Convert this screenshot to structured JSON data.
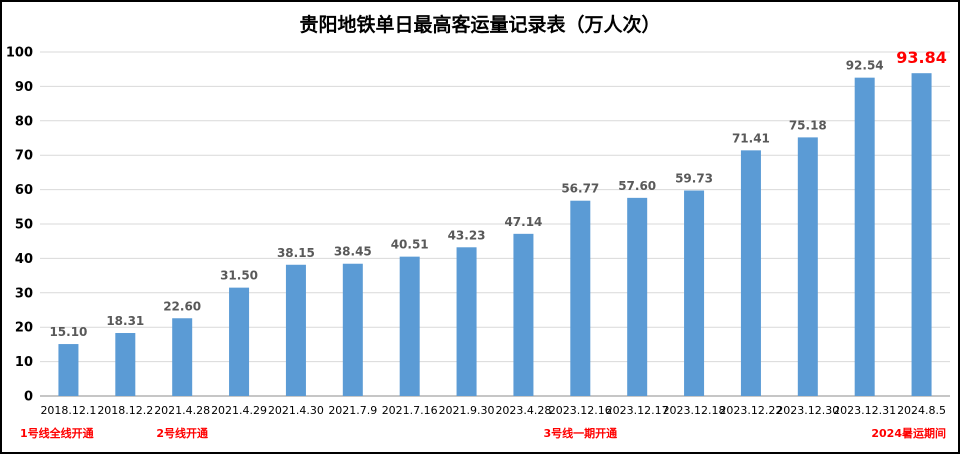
{
  "chart_data": {
    "type": "bar",
    "title": "贵阳地铁单日最高客运量记录表（万人次）",
    "categories": [
      "2018.12.1",
      "2018.12.2",
      "2021.4.28",
      "2021.4.29",
      "2021.4.30",
      "2021.7.9",
      "2021.7.16",
      "2021.9.30",
      "2023.4.28",
      "2023.12.16",
      "2023.12.17",
      "2023.12.18",
      "2023.12.22",
      "2023.12.30",
      "2023.12.31",
      "2024.8.5"
    ],
    "values": [
      15.1,
      18.31,
      22.6,
      31.5,
      38.15,
      38.45,
      40.51,
      43.23,
      47.14,
      56.77,
      57.6,
      59.73,
      71.41,
      75.18,
      92.54,
      93.84
    ],
    "value_labels": [
      "15.10",
      "18.31",
      "22.60",
      "31.50",
      "38.15",
      "38.45",
      "40.51",
      "43.23",
      "47.14",
      "56.77",
      "57.60",
      "59.73",
      "71.41",
      "75.18",
      "92.54",
      "93.84"
    ],
    "highlight_index": 15,
    "ylim": [
      0,
      100
    ],
    "yticks": [
      "0",
      "10",
      "20",
      "30",
      "40",
      "50",
      "60",
      "70",
      "80",
      "90",
      "100"
    ],
    "grid": true,
    "legend": "none",
    "colors": {
      "bar": "#5b9bd5",
      "highlight_label": "#ff0000",
      "annotation": "#ff0000"
    },
    "annotations": [
      {
        "category_index": 0,
        "text": "1号线全线开通"
      },
      {
        "category_index": 2,
        "text": "2号线开通"
      },
      {
        "category_index": 9,
        "text": "3号线一期开通"
      },
      {
        "category_index": 15,
        "text": "2024暑运期间"
      }
    ]
  }
}
